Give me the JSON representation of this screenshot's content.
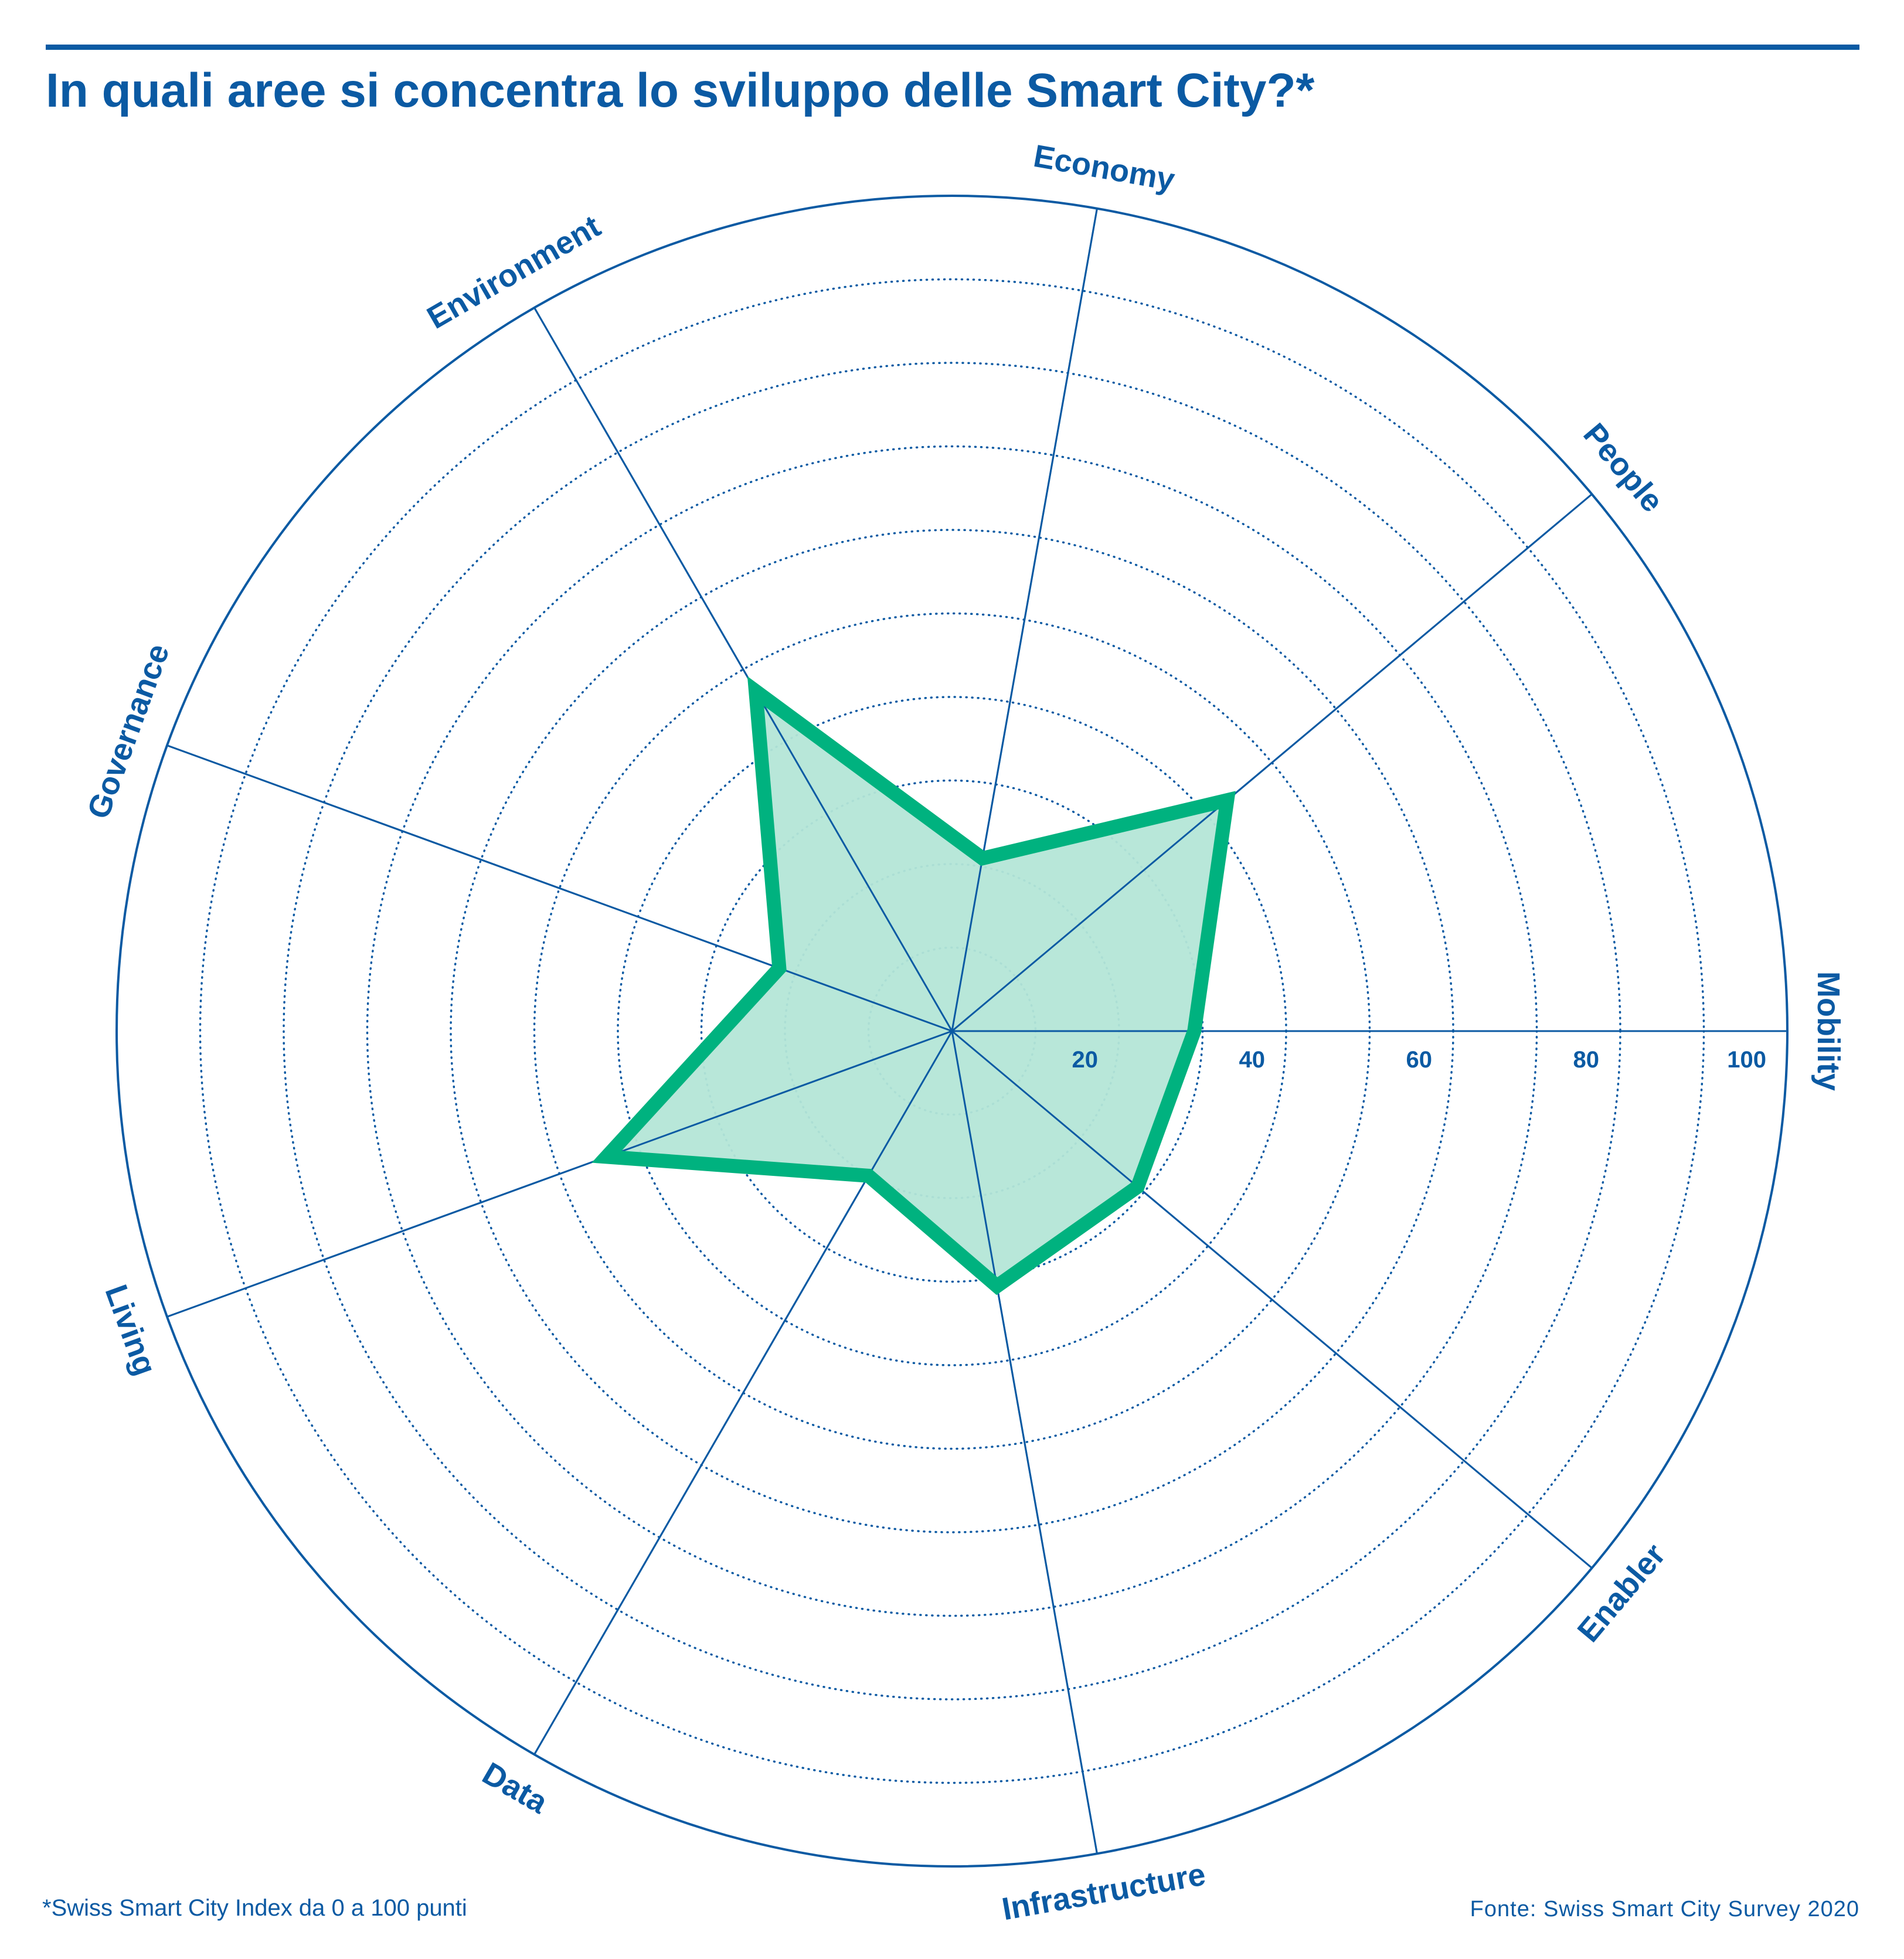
{
  "title": "In quali aree si concentra lo sviluppo delle Smart City?*",
  "footnote": "*Swiss Smart City Index da 0 a 100 punti",
  "source": "Fonte: Swiss Smart City Survey 2020",
  "colors": {
    "text": "#0b5aa3",
    "series_line": "#00b27f",
    "series_fill": "#b4e6d7"
  },
  "chart_data": {
    "type": "radar",
    "title": "In quali aree si concentra lo sviluppo delle Smart City?*",
    "axes": [
      "Mobility",
      "People",
      "Economy",
      "Environment",
      "Governance",
      "Living",
      "Data",
      "Infrastructure",
      "Enabler"
    ],
    "rlim": [
      0,
      100
    ],
    "ticks": [
      20,
      40,
      60,
      80,
      100
    ],
    "tick_labels": [
      "20",
      "40",
      "60",
      "80",
      "100"
    ],
    "gridlines": "dotted circles every 10",
    "series": [
      {
        "values": [
          29,
          43,
          21,
          47,
          22,
          44,
          20,
          31,
          29
        ]
      }
    ]
  }
}
